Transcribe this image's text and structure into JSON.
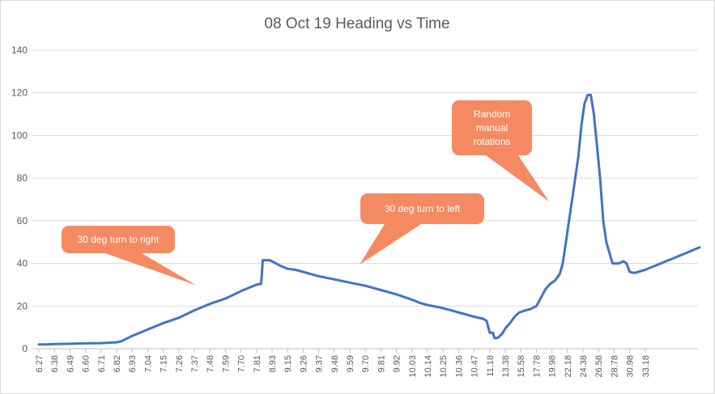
{
  "chart_data": {
    "type": "line",
    "title": "08 Oct 19 Heading vs Time",
    "xlabel": "",
    "ylabel": "",
    "ylim": [
      0,
      140
    ],
    "yticks": [
      0,
      20,
      40,
      60,
      80,
      100,
      120,
      140
    ],
    "grid": true,
    "legend": "none",
    "x_tick_labels": [
      "6.27",
      "6.38",
      "6.49",
      "6.60",
      "6.71",
      "6.82",
      "6.93",
      "7.04",
      "7.15",
      "7.26",
      "7.37",
      "7.48",
      "7.59",
      "7.70",
      "7.81",
      "8.93",
      "9.15",
      "9.26",
      "9.37",
      "9.48",
      "9.59",
      "9.70",
      "9.81",
      "9.92",
      "10.03",
      "10.14",
      "10.25",
      "10.36",
      "10.47",
      "11.18",
      "13.38",
      "15.58",
      "17.78",
      "19.98",
      "22.18",
      "24.38",
      "26.58",
      "28.78",
      "30.98",
      "33.18"
    ],
    "series": [
      {
        "color": "#4472c4",
        "points": [
          [
            0,
            2
          ],
          [
            0.5,
            2
          ],
          [
            1,
            2.2
          ],
          [
            2,
            2.3
          ],
          [
            3,
            2.5
          ],
          [
            4,
            2.6
          ],
          [
            5,
            3
          ],
          [
            5.3,
            3.5
          ],
          [
            6,
            6
          ],
          [
            7,
            9
          ],
          [
            8,
            12
          ],
          [
            9,
            14.5
          ],
          [
            10,
            18
          ],
          [
            11,
            21
          ],
          [
            12,
            23.5
          ],
          [
            13,
            27
          ],
          [
            14,
            30
          ],
          [
            14.3,
            30.5
          ],
          [
            14.4,
            41.5
          ],
          [
            14.8,
            41.5
          ],
          [
            15,
            41
          ],
          [
            15.5,
            39
          ],
          [
            16,
            37.5
          ],
          [
            16.5,
            37
          ],
          [
            17,
            36
          ],
          [
            18,
            34
          ],
          [
            19,
            32.5
          ],
          [
            20,
            31
          ],
          [
            21,
            29.5
          ],
          [
            22,
            27.5
          ],
          [
            23,
            25.5
          ],
          [
            24,
            23
          ],
          [
            24.5,
            21.5
          ],
          [
            25,
            20.5
          ],
          [
            26,
            19
          ],
          [
            27,
            17
          ],
          [
            28,
            15
          ],
          [
            28.6,
            14
          ],
          [
            28.8,
            13
          ],
          [
            29,
            7.5
          ],
          [
            29.2,
            7.5
          ],
          [
            29.3,
            5
          ],
          [
            29.5,
            5
          ],
          [
            29.8,
            7
          ],
          [
            30,
            9.5
          ],
          [
            30.3,
            12
          ],
          [
            30.6,
            15
          ],
          [
            30.9,
            17
          ],
          [
            31.3,
            18
          ],
          [
            31.6,
            18.5
          ],
          [
            32,
            20
          ],
          [
            32.3,
            24
          ],
          [
            32.6,
            28
          ],
          [
            32.9,
            30.5
          ],
          [
            33.2,
            32
          ],
          [
            33.5,
            35
          ],
          [
            33.7,
            40
          ],
          [
            33.9,
            50
          ],
          [
            34.1,
            60
          ],
          [
            34.3,
            70
          ],
          [
            34.5,
            80
          ],
          [
            34.7,
            90
          ],
          [
            34.9,
            105
          ],
          [
            35.1,
            115
          ],
          [
            35.3,
            119
          ],
          [
            35.5,
            119
          ],
          [
            35.7,
            110
          ],
          [
            35.9,
            95
          ],
          [
            36.1,
            80
          ],
          [
            36.3,
            60
          ],
          [
            36.5,
            50
          ],
          [
            36.7,
            45
          ],
          [
            36.9,
            40
          ],
          [
            37.3,
            40
          ],
          [
            37.6,
            41
          ],
          [
            37.8,
            40
          ],
          [
            38,
            36
          ],
          [
            38.3,
            35.5
          ],
          [
            39,
            37
          ],
          [
            40,
            40
          ],
          [
            41,
            43
          ],
          [
            42,
            46
          ],
          [
            42.5,
            47.5
          ]
        ]
      }
    ],
    "annotations": [
      {
        "lines": [
          "30 deg turn to right"
        ]
      },
      {
        "lines": [
          "30 deg turn to left"
        ]
      },
      {
        "lines": [
          "Random",
          "manual",
          "rotations"
        ]
      }
    ]
  }
}
